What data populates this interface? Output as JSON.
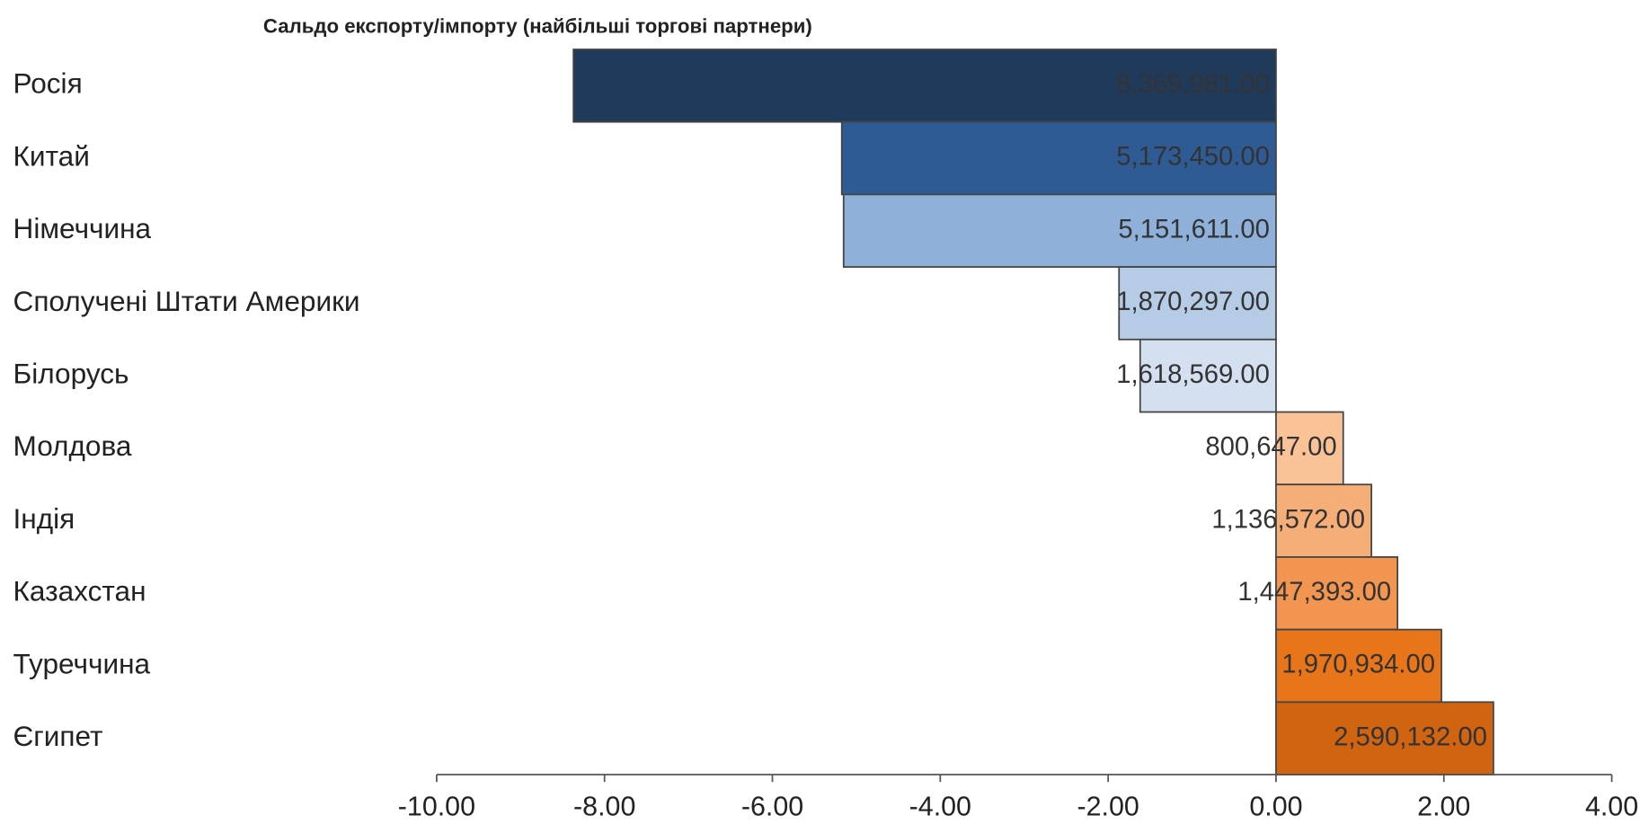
{
  "chart_data": {
    "type": "hbar",
    "title": "Сальдо експорту/імпорту (найбільші торгові партнери)",
    "categories": [
      "Росія",
      "Китай",
      "Німеччина",
      "Сполучені Штати Америки",
      "Білорусь",
      "Молдова",
      "Індія",
      "Казахстан",
      "Туреччина",
      "Єгипет"
    ],
    "values": [
      -8.369981,
      -5.17345,
      -5.151611,
      -1.870297,
      -1.618569,
      0.800647,
      1.136572,
      1.447393,
      1.970934,
      2.590132
    ],
    "value_labels": [
      "8,369,981.00",
      "5,173,450.00",
      "5,151,611.00",
      "1,870,297.00",
      "1,618,569.00",
      "800,647.00",
      "1,136,572.00",
      "1,447,393.00",
      "1,970,934.00",
      "2,590,132.00"
    ],
    "colors": [
      "#203a5c",
      "#2f5b94",
      "#8fb1d9",
      "#b6cbe6",
      "#d4e0f0",
      "#f9c397",
      "#f6ae78",
      "#f29550",
      "#e8751a",
      "#d06411"
    ],
    "xlim": [
      -10,
      4
    ],
    "xticks": [
      {
        "value": -10,
        "label": "-10.00"
      },
      {
        "value": -8,
        "label": "-8.00"
      },
      {
        "value": -6,
        "label": "-6.00"
      },
      {
        "value": -4,
        "label": "-4.00"
      },
      {
        "value": -2,
        "label": "-2.00"
      },
      {
        "value": 0,
        "label": "0.00"
      },
      {
        "value": 2,
        "label": "2.00"
      },
      {
        "value": 4,
        "label": "4.00"
      }
    ]
  }
}
